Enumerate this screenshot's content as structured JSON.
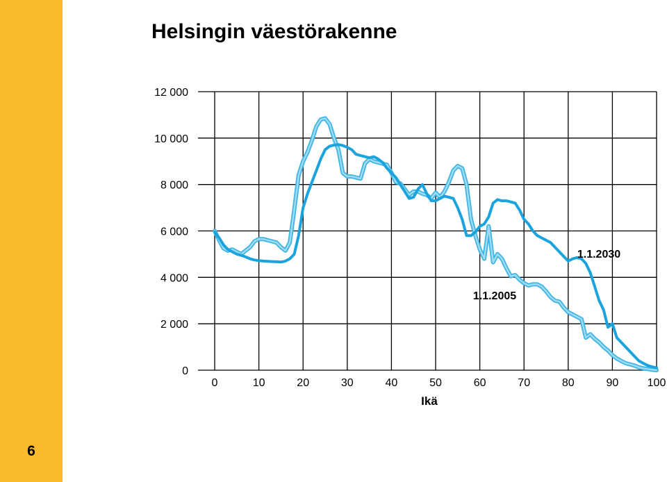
{
  "page": {
    "number": "6",
    "band_color": "#FBB92C"
  },
  "chart_data": {
    "type": "line",
    "title": "Helsingin väestörakenne",
    "xlabel": "Ikä",
    "ylabel": "",
    "xlim": [
      0,
      100
    ],
    "ylim": [
      0,
      12000
    ],
    "xticks": [
      0,
      10,
      20,
      30,
      40,
      50,
      60,
      70,
      80,
      90,
      100
    ],
    "yticks": [
      0,
      2000,
      4000,
      6000,
      8000,
      10000,
      12000
    ],
    "xtick_labels": [
      "0",
      "10",
      "20",
      "30",
      "40",
      "50",
      "60",
      "70",
      "80",
      "90",
      "100"
    ],
    "ytick_labels": [
      "0",
      "2 000",
      "4 000",
      "6 000",
      "8 000",
      "10 000",
      "12 000"
    ],
    "grid": true,
    "series": [
      {
        "name": "1.1.2030",
        "color": "#1AA3DD",
        "style": "solid",
        "x": [
          0,
          1,
          2,
          3,
          4,
          5,
          6,
          7,
          8,
          9,
          10,
          11,
          12,
          13,
          14,
          15,
          16,
          17,
          18,
          19,
          20,
          21,
          22,
          23,
          24,
          25,
          26,
          27,
          28,
          29,
          30,
          31,
          32,
          33,
          34,
          35,
          36,
          37,
          38,
          39,
          40,
          41,
          42,
          43,
          44,
          45,
          46,
          47,
          48,
          49,
          50,
          51,
          52,
          53,
          54,
          55,
          56,
          57,
          58,
          59,
          60,
          61,
          62,
          63,
          64,
          65,
          66,
          67,
          68,
          69,
          70,
          71,
          72,
          73,
          74,
          75,
          76,
          77,
          78,
          79,
          80,
          81,
          82,
          83,
          84,
          85,
          86,
          87,
          88,
          89,
          90,
          91,
          92,
          93,
          94,
          95,
          96,
          97,
          98,
          99,
          100
        ],
        "values": [
          5950,
          5700,
          5400,
          5200,
          5100,
          5000,
          4950,
          4880,
          4800,
          4750,
          4720,
          4700,
          4690,
          4680,
          4670,
          4660,
          4700,
          4800,
          5000,
          5800,
          7000,
          7600,
          8100,
          8600,
          9100,
          9500,
          9650,
          9700,
          9720,
          9680,
          9600,
          9500,
          9300,
          9250,
          9200,
          9150,
          9200,
          9100,
          8950,
          8700,
          8500,
          8300,
          8000,
          7700,
          7400,
          7450,
          7800,
          8000,
          7600,
          7300,
          7300,
          7400,
          7500,
          7450,
          7400,
          7000,
          6500,
          5800,
          5800,
          5950,
          6200,
          6300,
          6600,
          7200,
          7350,
          7300,
          7300,
          7250,
          7200,
          6900,
          6500,
          6300,
          6000,
          5800,
          5700,
          5600,
          5500,
          5300,
          5100,
          4900,
          4700,
          4800,
          4850,
          4800,
          4600,
          4200,
          3600,
          3000,
          2600,
          1850,
          2000,
          1400,
          1200,
          1000,
          800,
          600,
          400,
          300,
          200,
          150,
          100
        ]
      },
      {
        "name": "1.1.2005",
        "color": "#9DDCF2",
        "style": "double",
        "x": [
          0,
          1,
          2,
          3,
          4,
          5,
          6,
          7,
          8,
          9,
          10,
          11,
          12,
          13,
          14,
          15,
          16,
          17,
          18,
          19,
          20,
          21,
          22,
          23,
          24,
          25,
          26,
          27,
          28,
          29,
          30,
          31,
          32,
          33,
          34,
          35,
          36,
          37,
          38,
          39,
          40,
          41,
          42,
          43,
          44,
          45,
          46,
          47,
          48,
          49,
          50,
          51,
          52,
          53,
          54,
          55,
          56,
          57,
          58,
          59,
          60,
          61,
          62,
          63,
          64,
          65,
          66,
          67,
          68,
          69,
          70,
          71,
          72,
          73,
          74,
          75,
          76,
          77,
          78,
          79,
          80,
          81,
          82,
          83,
          84,
          85,
          86,
          87,
          88,
          89,
          90,
          91,
          92,
          93,
          94,
          95,
          96,
          97,
          98,
          99,
          100
        ],
        "values": [
          6000,
          5600,
          5250,
          5150,
          5200,
          5100,
          5000,
          5150,
          5300,
          5550,
          5650,
          5650,
          5600,
          5550,
          5500,
          5300,
          5150,
          5500,
          6900,
          8400,
          9000,
          9400,
          9900,
          10500,
          10800,
          10850,
          10600,
          10000,
          9500,
          8500,
          8350,
          8350,
          8300,
          8250,
          8900,
          9100,
          9000,
          8950,
          8900,
          8850,
          8500,
          8100,
          8050,
          7800,
          7550,
          7700,
          7700,
          7600,
          7550,
          7400,
          7650,
          7450,
          7700,
          8100,
          8600,
          8800,
          8700,
          8000,
          6500,
          5800,
          5200,
          4800,
          6200,
          4650,
          5000,
          4800,
          4400,
          4050,
          4100,
          3900,
          3750,
          3650,
          3700,
          3700,
          3600,
          3400,
          3150,
          3000,
          2950,
          2700,
          2500,
          2400,
          2300,
          2200,
          1400,
          1550,
          1350,
          1200,
          1000,
          850,
          650,
          500,
          400,
          300,
          250,
          200,
          120,
          80,
          50,
          20,
          0
        ]
      }
    ],
    "annotations": [
      {
        "text": "1.1.2030",
        "series": 0
      },
      {
        "text": "1.1.2005",
        "series": 1
      }
    ]
  }
}
